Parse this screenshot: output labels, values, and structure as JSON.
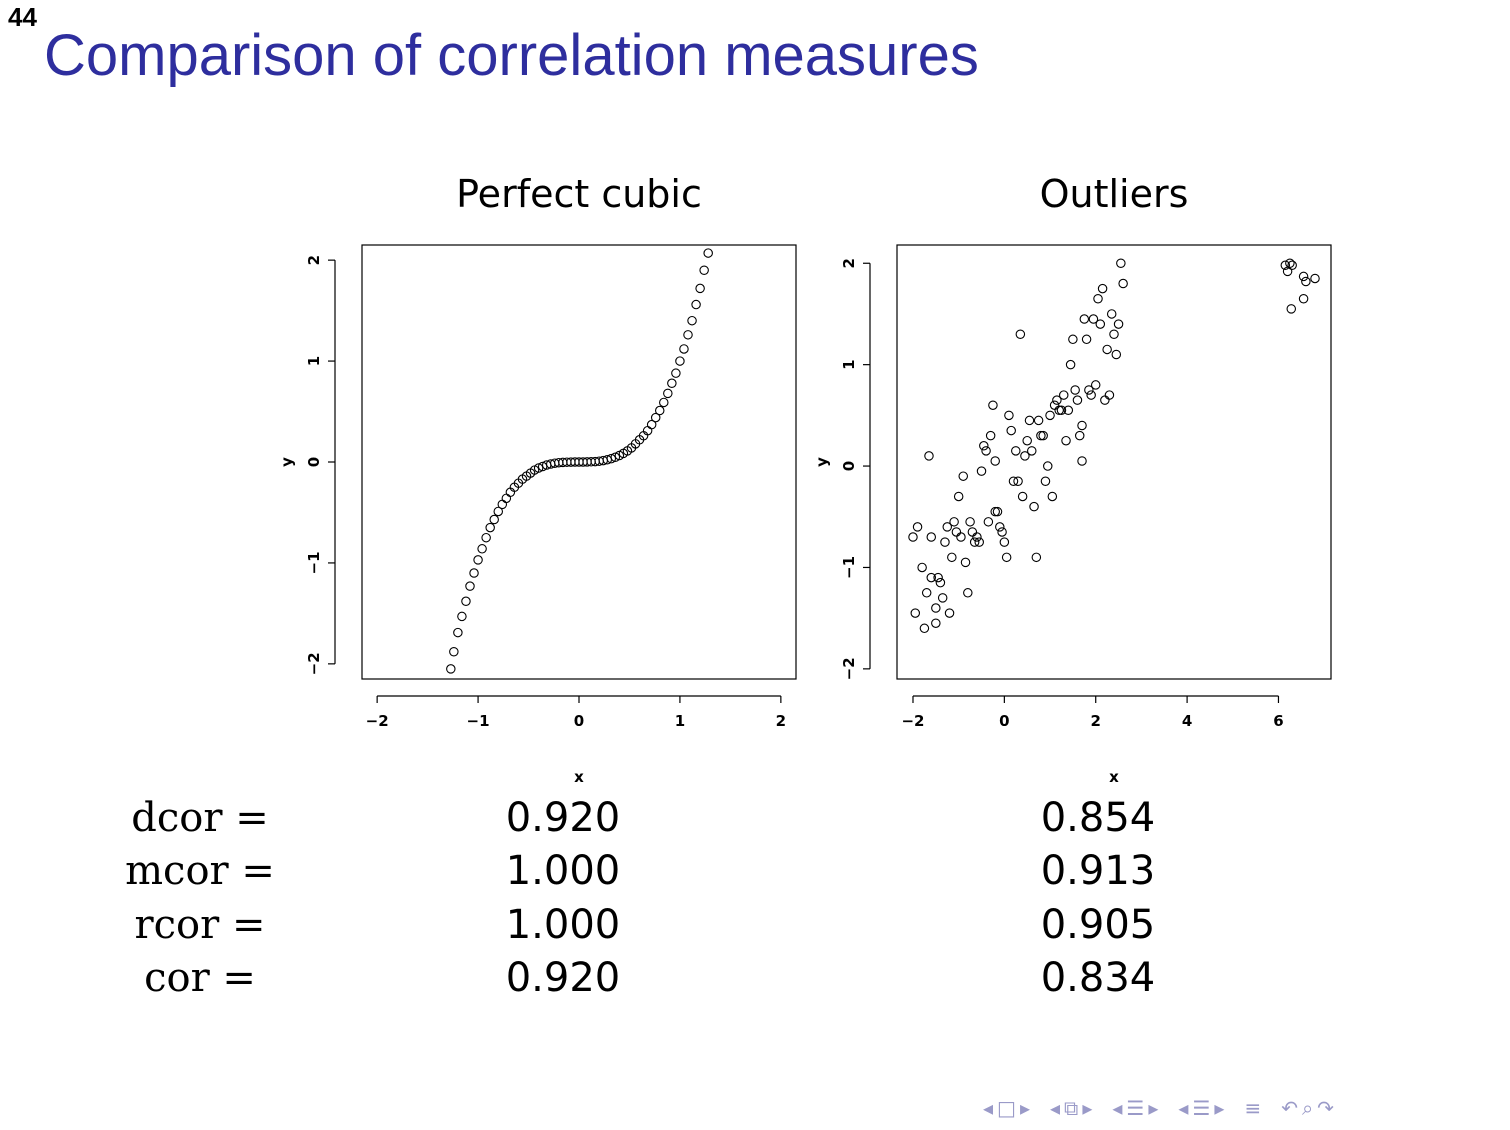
{
  "slide": {
    "number": "44",
    "title": "Comparison of correlation measures"
  },
  "chart_data": [
    {
      "type": "scatter",
      "title": "Perfect cubic",
      "xlabel": "x",
      "ylabel": "y",
      "xlim": [
        -2.15,
        2.15
      ],
      "ylim": [
        -2.15,
        2.15
      ],
      "xticks": [
        -2,
        -1,
        0,
        1,
        2
      ],
      "xtick_labels": [
        "−2",
        "−1",
        "0",
        "1",
        "2"
      ],
      "yticks": [
        -2,
        -1,
        0,
        1,
        2
      ],
      "ytick_labels": [
        "−2",
        "−1",
        "0",
        "1",
        "2"
      ],
      "grid": false,
      "points": [
        [
          -1.27,
          -2.05
        ],
        [
          -1.24,
          -1.88
        ],
        [
          -1.2,
          -1.69
        ],
        [
          -1.16,
          -1.53
        ],
        [
          -1.12,
          -1.38
        ],
        [
          -1.08,
          -1.23
        ],
        [
          -1.04,
          -1.1
        ],
        [
          -1.0,
          -0.97
        ],
        [
          -0.96,
          -0.86
        ],
        [
          -0.92,
          -0.75
        ],
        [
          -0.88,
          -0.65
        ],
        [
          -0.84,
          -0.57
        ],
        [
          -0.8,
          -0.49
        ],
        [
          -0.76,
          -0.42
        ],
        [
          -0.72,
          -0.36
        ],
        [
          -0.68,
          -0.3
        ],
        [
          -0.64,
          -0.25
        ],
        [
          -0.6,
          -0.21
        ],
        [
          -0.56,
          -0.17
        ],
        [
          -0.52,
          -0.14
        ],
        [
          -0.48,
          -0.11
        ],
        [
          -0.44,
          -0.08
        ],
        [
          -0.4,
          -0.06
        ],
        [
          -0.36,
          -0.045
        ],
        [
          -0.32,
          -0.03
        ],
        [
          -0.28,
          -0.02
        ],
        [
          -0.24,
          -0.012
        ],
        [
          -0.2,
          -0.007
        ],
        [
          -0.16,
          -0.004
        ],
        [
          -0.12,
          -0.002
        ],
        [
          -0.08,
          -0.001
        ],
        [
          -0.04,
          0.0
        ],
        [
          0.0,
          0.0
        ],
        [
          0.04,
          0.0
        ],
        [
          0.08,
          0.001
        ],
        [
          0.12,
          0.002
        ],
        [
          0.16,
          0.004
        ],
        [
          0.2,
          0.008
        ],
        [
          0.24,
          0.014
        ],
        [
          0.28,
          0.022
        ],
        [
          0.32,
          0.033
        ],
        [
          0.36,
          0.047
        ],
        [
          0.4,
          0.064
        ],
        [
          0.44,
          0.085
        ],
        [
          0.48,
          0.11
        ],
        [
          0.52,
          0.14
        ],
        [
          0.56,
          0.18
        ],
        [
          0.6,
          0.22
        ],
        [
          0.64,
          0.26
        ],
        [
          0.68,
          0.31
        ],
        [
          0.72,
          0.37
        ],
        [
          0.76,
          0.44
        ],
        [
          0.8,
          0.51
        ],
        [
          0.84,
          0.59
        ],
        [
          0.88,
          0.68
        ],
        [
          0.92,
          0.78
        ],
        [
          0.96,
          0.88
        ],
        [
          1.0,
          1.0
        ],
        [
          1.04,
          1.12
        ],
        [
          1.08,
          1.26
        ],
        [
          1.12,
          1.4
        ],
        [
          1.16,
          1.56
        ],
        [
          1.2,
          1.72
        ],
        [
          1.24,
          1.9
        ],
        [
          1.28,
          2.07
        ]
      ]
    },
    {
      "type": "scatter",
      "title": "Outliers",
      "xlabel": "x",
      "ylabel": "y",
      "xlim": [
        -2.35,
        7.15
      ],
      "ylim": [
        -2.1,
        2.18
      ],
      "xticks": [
        -2,
        0,
        2,
        4,
        6
      ],
      "xtick_labels": [
        "−2",
        "0",
        "2",
        "4",
        "6"
      ],
      "yticks": [
        -2,
        -1,
        0,
        1,
        2
      ],
      "ytick_labels": [
        "−2",
        "−1",
        "0",
        "1",
        "2"
      ],
      "grid": false,
      "points": [
        [
          -2.0,
          -0.7
        ],
        [
          -1.9,
          -0.6
        ],
        [
          -1.95,
          -1.45
        ],
        [
          -1.8,
          -1.0
        ],
        [
          -1.75,
          -1.6
        ],
        [
          -1.7,
          -1.25
        ],
        [
          -1.65,
          0.1
        ],
        [
          -1.6,
          -0.7
        ],
        [
          -1.6,
          -1.1
        ],
        [
          -1.5,
          -1.4
        ],
        [
          -1.5,
          -1.55
        ],
        [
          -1.45,
          -1.1
        ],
        [
          -1.4,
          -1.15
        ],
        [
          -1.35,
          -1.3
        ],
        [
          -1.3,
          -0.75
        ],
        [
          -1.25,
          -0.6
        ],
        [
          -1.2,
          -1.45
        ],
        [
          -1.15,
          -0.9
        ],
        [
          -1.1,
          -0.55
        ],
        [
          -1.05,
          -0.65
        ],
        [
          -1.0,
          -0.3
        ],
        [
          -0.95,
          -0.7
        ],
        [
          -0.9,
          -0.1
        ],
        [
          -0.85,
          -0.95
        ],
        [
          -0.8,
          -1.25
        ],
        [
          -0.75,
          -0.55
        ],
        [
          -0.7,
          -0.65
        ],
        [
          -0.65,
          -0.75
        ],
        [
          -0.6,
          -0.7
        ],
        [
          -0.55,
          -0.75
        ],
        [
          -0.5,
          -0.05
        ],
        [
          -0.45,
          0.2
        ],
        [
          -0.4,
          0.15
        ],
        [
          -0.35,
          -0.55
        ],
        [
          -0.3,
          0.3
        ],
        [
          -0.25,
          0.6
        ],
        [
          -0.2,
          0.05
        ],
        [
          -0.2,
          -0.45
        ],
        [
          -0.15,
          -0.45
        ],
        [
          -0.1,
          -0.6
        ],
        [
          -0.05,
          -0.65
        ],
        [
          0.0,
          -0.75
        ],
        [
          0.05,
          -0.9
        ],
        [
          0.1,
          0.5
        ],
        [
          0.15,
          0.35
        ],
        [
          0.2,
          -0.15
        ],
        [
          0.25,
          0.15
        ],
        [
          0.3,
          -0.15
        ],
        [
          0.35,
          1.3
        ],
        [
          0.4,
          -0.3
        ],
        [
          0.45,
          0.1
        ],
        [
          0.5,
          0.25
        ],
        [
          0.55,
          0.45
        ],
        [
          0.6,
          0.15
        ],
        [
          0.65,
          -0.4
        ],
        [
          0.7,
          -0.9
        ],
        [
          0.75,
          0.45
        ],
        [
          0.8,
          0.3
        ],
        [
          0.85,
          0.3
        ],
        [
          0.9,
          -0.15
        ],
        [
          0.95,
          0.0
        ],
        [
          1.0,
          0.5
        ],
        [
          1.05,
          -0.3
        ],
        [
          1.1,
          0.6
        ],
        [
          1.15,
          0.65
        ],
        [
          1.2,
          0.55
        ],
        [
          1.25,
          0.55
        ],
        [
          1.3,
          0.7
        ],
        [
          1.35,
          0.25
        ],
        [
          1.4,
          0.55
        ],
        [
          1.45,
          1.0
        ],
        [
          1.5,
          1.25
        ],
        [
          1.55,
          0.75
        ],
        [
          1.6,
          0.65
        ],
        [
          1.65,
          0.3
        ],
        [
          1.7,
          0.05
        ],
        [
          1.7,
          0.4
        ],
        [
          1.75,
          1.45
        ],
        [
          1.8,
          1.25
        ],
        [
          1.85,
          0.75
        ],
        [
          1.9,
          0.7
        ],
        [
          1.95,
          1.45
        ],
        [
          2.0,
          0.8
        ],
        [
          2.05,
          1.65
        ],
        [
          2.1,
          1.4
        ],
        [
          2.15,
          1.75
        ],
        [
          2.2,
          0.65
        ],
        [
          2.25,
          1.15
        ],
        [
          2.3,
          0.7
        ],
        [
          2.35,
          1.5
        ],
        [
          2.4,
          1.3
        ],
        [
          2.45,
          1.1
        ],
        [
          2.5,
          1.4
        ],
        [
          2.55,
          2.0
        ],
        [
          2.6,
          1.8
        ],
        [
          6.15,
          1.98
        ],
        [
          6.2,
          1.92
        ],
        [
          6.25,
          2.0
        ],
        [
          6.3,
          1.98
        ],
        [
          6.28,
          1.55
        ],
        [
          6.55,
          1.87
        ],
        [
          6.6,
          1.82
        ],
        [
          6.55,
          1.65
        ],
        [
          6.8,
          1.85
        ]
      ]
    }
  ],
  "measures": [
    {
      "label": "dcor =",
      "cubic": "0.920",
      "outliers": "0.854"
    },
    {
      "label": "mcor =",
      "cubic": "1.000",
      "outliers": "0.913"
    },
    {
      "label": "rcor =",
      "cubic": "1.000",
      "outliers": "0.905"
    },
    {
      "label": "cor =",
      "cubic": "0.920",
      "outliers": "0.834"
    }
  ],
  "nav": {
    "icons": [
      "nav-prev-frame-icon",
      "nav-frame-icon",
      "nav-next-frame-icon",
      "nav-prev-slide-icon",
      "nav-slide-icon",
      "nav-next-slide-icon",
      "nav-prev-section-icon",
      "nav-section-icon",
      "nav-next-section-icon",
      "nav-prev-subsection-icon",
      "nav-subsection-icon",
      "nav-next-subsection-icon",
      "nav-align-icon",
      "nav-undo-icon",
      "nav-search-icon",
      "nav-redo-icon"
    ]
  }
}
